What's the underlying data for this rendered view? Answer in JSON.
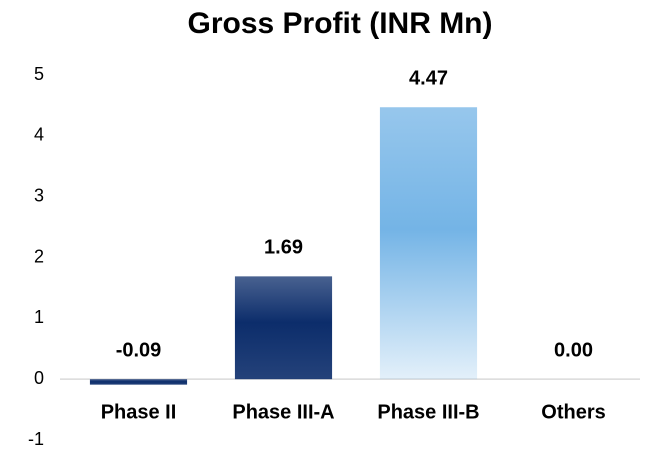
{
  "chart_data": {
    "type": "bar",
    "title": "Gross Profit (INR Mn)",
    "categories": [
      "Phase II",
      "Phase III-A",
      "Phase III-B",
      "Others"
    ],
    "values": [
      -0.09,
      1.69,
      4.47,
      0
    ],
    "value_labels": [
      "-0.09",
      "1.69",
      "4.47",
      "0.00"
    ],
    "colors": [
      "#0c2d6b",
      "#0c2d6b",
      "#74b4e6",
      "#74b4e6"
    ],
    "ylim": [
      -1,
      5
    ],
    "yticks": [
      -1,
      0,
      1,
      2,
      3,
      4,
      5
    ],
    "grid": false
  }
}
